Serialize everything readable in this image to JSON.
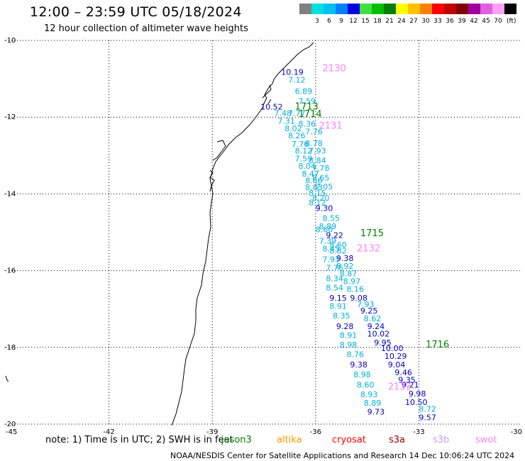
{
  "header": {
    "title": "12:00 – 23:59 UTC 05/18/2024",
    "subtitle": "12 hour collection of altimeter wave heights"
  },
  "legend": {
    "unit": "(ft)",
    "swatches": [
      {
        "color": "#808080",
        "label": ""
      },
      {
        "color": "#00e0e0",
        "label": "3"
      },
      {
        "color": "#00c0f0",
        "label": "6"
      },
      {
        "color": "#0080ff",
        "label": "9"
      },
      {
        "color": "#0000e0",
        "label": "12"
      },
      {
        "color": "#40e040",
        "label": "15"
      },
      {
        "color": "#00c000",
        "label": "18"
      },
      {
        "color": "#008000",
        "label": "21"
      },
      {
        "color": "#ffff00",
        "label": "24"
      },
      {
        "color": "#ffc000",
        "label": "27"
      },
      {
        "color": "#ff8000",
        "label": "30"
      },
      {
        "color": "#ff0000",
        "label": "33"
      },
      {
        "color": "#c00000",
        "label": "36"
      },
      {
        "color": "#800000",
        "label": "39"
      },
      {
        "color": "#a000a0",
        "label": "42"
      },
      {
        "color": "#e060e0",
        "label": "45"
      },
      {
        "color": "#ffa0ff",
        "label": "70"
      },
      {
        "color": "#000000",
        "label": ""
      }
    ]
  },
  "map": {
    "lon_range": [
      -45,
      -30
    ],
    "lat_range": [
      -20,
      -10
    ],
    "lon_ticks": [
      "-45",
      "-42",
      "-39",
      "-36",
      "-33",
      "-30"
    ],
    "lat_ticks": [
      "-10",
      "-12",
      "-14",
      "-16",
      "-18",
      "-20"
    ],
    "pass_times": [
      {
        "text": "2130",
        "lon": -35.8,
        "lat": -10.8,
        "color": "#ff80ff"
      },
      {
        "text": "1713",
        "lon": -36.6,
        "lat": -11.8,
        "color": "#008000"
      },
      {
        "text": "1714",
        "lon": -36.5,
        "lat": -12.0,
        "color": "#008000"
      },
      {
        "text": "2131",
        "lon": -35.9,
        "lat": -12.3,
        "color": "#ff80ff"
      },
      {
        "text": "1715",
        "lon": -34.7,
        "lat": -15.1,
        "color": "#008000"
      },
      {
        "text": "2132",
        "lon": -34.8,
        "lat": -15.5,
        "color": "#ff80ff"
      },
      {
        "text": "1716",
        "lon": -32.8,
        "lat": -18.0,
        "color": "#008000"
      },
      {
        "text": "2133",
        "lon": -33.9,
        "lat": -19.1,
        "color": "#ff80ff"
      }
    ],
    "observations": [
      {
        "v": "10.19",
        "lon": -37.0,
        "lat": -10.9,
        "c": "#0000c0"
      },
      {
        "v": "7.12",
        "lon": -36.8,
        "lat": -11.1,
        "c": "#00b0e0"
      },
      {
        "v": "6.89",
        "lon": -36.6,
        "lat": -11.4,
        "c": "#00b0e0"
      },
      {
        "v": "7.59",
        "lon": -36.5,
        "lat": -11.65,
        "c": "#00b0e0"
      },
      {
        "v": "10.52",
        "lon": -37.6,
        "lat": -11.8,
        "c": "#0000c0"
      },
      {
        "v": "7.48",
        "lon": -37.2,
        "lat": -11.97,
        "c": "#00b0e0"
      },
      {
        "v": "7.77",
        "lon": -36.8,
        "lat": -11.97,
        "c": "#00b0e0"
      },
      {
        "v": "7.31",
        "lon": -37.1,
        "lat": -12.17,
        "c": "#00b0e0"
      },
      {
        "v": "8.36",
        "lon": -36.5,
        "lat": -12.25,
        "c": "#00b0e0"
      },
      {
        "v": "8.02",
        "lon": -36.9,
        "lat": -12.37,
        "c": "#00b0e0"
      },
      {
        "v": "7.76",
        "lon": -36.3,
        "lat": -12.45,
        "c": "#00b0e0"
      },
      {
        "v": "8.26",
        "lon": -36.8,
        "lat": -12.55,
        "c": "#00b0e0"
      },
      {
        "v": "7.76",
        "lon": -36.7,
        "lat": -12.77,
        "c": "#00b0e0"
      },
      {
        "v": "8.78",
        "lon": -36.3,
        "lat": -12.75,
        "c": "#00b0e0"
      },
      {
        "v": "8.12",
        "lon": -36.6,
        "lat": -12.95,
        "c": "#00b0e0"
      },
      {
        "v": "7.93",
        "lon": -36.2,
        "lat": -12.95,
        "c": "#00b0e0"
      },
      {
        "v": "7.59",
        "lon": -36.6,
        "lat": -13.15,
        "c": "#00b0e0"
      },
      {
        "v": "8.84",
        "lon": -36.2,
        "lat": -13.2,
        "c": "#00b0e0"
      },
      {
        "v": "8.04",
        "lon": -36.5,
        "lat": -13.35,
        "c": "#00b0e0"
      },
      {
        "v": "7.78",
        "lon": -36.1,
        "lat": -13.4,
        "c": "#00b0e0"
      },
      {
        "v": "8.47",
        "lon": -36.4,
        "lat": -13.55,
        "c": "#00b0e0"
      },
      {
        "v": "8.65",
        "lon": -36.1,
        "lat": -13.65,
        "c": "#00b0e0"
      },
      {
        "v": "8.66",
        "lon": -36.3,
        "lat": -13.72,
        "c": "#00b0e0"
      },
      {
        "v": "7.05",
        "lon": -36.0,
        "lat": -13.88,
        "c": "#00b0e0"
      },
      {
        "v": "8.83",
        "lon": -36.3,
        "lat": -13.9,
        "c": "#00b0e0"
      },
      {
        "v": "8.15",
        "lon": -36.2,
        "lat": -14.05,
        "c": "#00b0e0"
      },
      {
        "v": "8.20",
        "lon": -36.1,
        "lat": -14.18,
        "c": "#00b0e0"
      },
      {
        "v": "8.12",
        "lon": -36.2,
        "lat": -14.3,
        "c": "#00b0e0"
      },
      {
        "v": "9.30",
        "lon": -36.0,
        "lat": -14.45,
        "c": "#0000c0"
      },
      {
        "v": "8.55",
        "lon": -35.8,
        "lat": -14.7,
        "c": "#00b0e0"
      },
      {
        "v": "8.89",
        "lon": -35.9,
        "lat": -14.92,
        "c": "#00b0e0"
      },
      {
        "v": "8.60",
        "lon": -36.0,
        "lat": -15.0,
        "c": "#00b0e0"
      },
      {
        "v": "9.22",
        "lon": -35.7,
        "lat": -15.15,
        "c": "#0000c0"
      },
      {
        "v": "7.39",
        "lon": -35.9,
        "lat": -15.3,
        "c": "#00b0e0"
      },
      {
        "v": "8.60",
        "lon": -35.6,
        "lat": -15.4,
        "c": "#00b0e0"
      },
      {
        "v": "8.45",
        "lon": -35.8,
        "lat": -15.5,
        "c": "#00b0e0"
      },
      {
        "v": "8.82",
        "lon": -35.6,
        "lat": -15.55,
        "c": "#00b0e0"
      },
      {
        "v": "9.38",
        "lon": -35.4,
        "lat": -15.75,
        "c": "#0000c0"
      },
      {
        "v": "7.93",
        "lon": -35.8,
        "lat": -15.78,
        "c": "#00b0e0"
      },
      {
        "v": "8.92",
        "lon": -35.4,
        "lat": -15.95,
        "c": "#00b0e0"
      },
      {
        "v": "7.76",
        "lon": -35.7,
        "lat": -16.0,
        "c": "#00b0e0"
      },
      {
        "v": "8.87",
        "lon": -35.3,
        "lat": -16.15,
        "c": "#00b0e0"
      },
      {
        "v": "8.34",
        "lon": -35.7,
        "lat": -16.28,
        "c": "#00b0e0"
      },
      {
        "v": "8.97",
        "lon": -35.2,
        "lat": -16.35,
        "c": "#00b0e0"
      },
      {
        "v": "8.54",
        "lon": -35.7,
        "lat": -16.52,
        "c": "#00b0e0"
      },
      {
        "v": "8.16",
        "lon": -35.1,
        "lat": -16.55,
        "c": "#00b0e0"
      },
      {
        "v": "9.15",
        "lon": -35.6,
        "lat": -16.78,
        "c": "#0000c0"
      },
      {
        "v": "9.08",
        "lon": -35.0,
        "lat": -16.78,
        "c": "#0000c0"
      },
      {
        "v": "7.93",
        "lon": -34.8,
        "lat": -16.95,
        "c": "#00b0e0"
      },
      {
        "v": "8.91",
        "lon": -35.6,
        "lat": -17.0,
        "c": "#00b0e0"
      },
      {
        "v": "9.25",
        "lon": -34.7,
        "lat": -17.12,
        "c": "#0000c0"
      },
      {
        "v": "8.35",
        "lon": -35.5,
        "lat": -17.25,
        "c": "#00b0e0"
      },
      {
        "v": "8.62",
        "lon": -34.6,
        "lat": -17.32,
        "c": "#00b0e0"
      },
      {
        "v": "9.28",
        "lon": -35.4,
        "lat": -17.52,
        "c": "#0000c0"
      },
      {
        "v": "9.24",
        "lon": -34.5,
        "lat": -17.52,
        "c": "#0000c0"
      },
      {
        "v": "10.02",
        "lon": -34.5,
        "lat": -17.72,
        "c": "#0000c0"
      },
      {
        "v": "8.91",
        "lon": -35.3,
        "lat": -17.75,
        "c": "#00b0e0"
      },
      {
        "v": "9.95",
        "lon": -34.3,
        "lat": -17.95,
        "c": "#0000c0"
      },
      {
        "v": "8.98",
        "lon": -35.3,
        "lat": -18.0,
        "c": "#00b0e0"
      },
      {
        "v": "10.00",
        "lon": -34.1,
        "lat": -18.1,
        "c": "#0000c0"
      },
      {
        "v": "8.76",
        "lon": -35.1,
        "lat": -18.25,
        "c": "#00b0e0"
      },
      {
        "v": "10.29",
        "lon": -34.0,
        "lat": -18.3,
        "c": "#0000c0"
      },
      {
        "v": "9.38",
        "lon": -35.0,
        "lat": -18.52,
        "c": "#0000c0"
      },
      {
        "v": "9.04",
        "lon": -33.9,
        "lat": -18.52,
        "c": "#0000c0"
      },
      {
        "v": "9.46",
        "lon": -33.7,
        "lat": -18.72,
        "c": "#0000c0"
      },
      {
        "v": "8.98",
        "lon": -34.9,
        "lat": -18.78,
        "c": "#00b0e0"
      },
      {
        "v": "9.35",
        "lon": -33.6,
        "lat": -18.92,
        "c": "#0000c0"
      },
      {
        "v": "8.60",
        "lon": -34.8,
        "lat": -19.05,
        "c": "#00b0e0"
      },
      {
        "v": "9.21",
        "lon": -33.5,
        "lat": -19.05,
        "c": "#0000c0"
      },
      {
        "v": "8.93",
        "lon": -34.7,
        "lat": -19.3,
        "c": "#00b0e0"
      },
      {
        "v": "9.98",
        "lon": -33.3,
        "lat": -19.28,
        "c": "#0000c0"
      },
      {
        "v": "10.50",
        "lon": -33.4,
        "lat": -19.5,
        "c": "#0000c0"
      },
      {
        "v": "8.89",
        "lon": -34.6,
        "lat": -19.52,
        "c": "#00b0e0"
      },
      {
        "v": "8.72",
        "lon": -33.0,
        "lat": -19.68,
        "c": "#00b0e0"
      },
      {
        "v": "9.73",
        "lon": -34.5,
        "lat": -19.75,
        "c": "#0000c0"
      },
      {
        "v": "9.57",
        "lon": -33.0,
        "lat": -19.9,
        "c": "#0000c0"
      }
    ]
  },
  "note": "note:  1) Time is in UTC; 2) SWH is in feet",
  "satellites": [
    {
      "name": "jason3",
      "color": "#008000"
    },
    {
      "name": "altika",
      "color": "#ff9900"
    },
    {
      "name": "cryosat",
      "color": "#ff0000"
    },
    {
      "name": "s3a",
      "color": "#a00000"
    },
    {
      "name": "s3b",
      "color": "#c0a0ff"
    },
    {
      "name": "swot",
      "color": "#ff80ff"
    }
  ],
  "footer": "NOAA/NESDIS Center for Satellite Applications and Research    14 Dec 10:06:24 UTC 2024"
}
